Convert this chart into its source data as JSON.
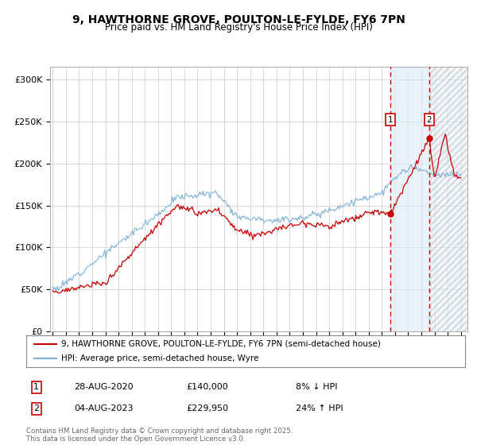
{
  "title_line1": "9, HAWTHORNE GROVE, POULTON-LE-FYLDE, FY6 7PN",
  "title_line2": "Price paid vs. HM Land Registry's House Price Index (HPI)",
  "ylabel_ticks": [
    "£0",
    "£50K",
    "£100K",
    "£150K",
    "£200K",
    "£250K",
    "£300K"
  ],
  "ytick_values": [
    0,
    50000,
    100000,
    150000,
    200000,
    250000,
    300000
  ],
  "ylim": [
    0,
    315000
  ],
  "xlim_start": 1994.8,
  "xlim_end": 2026.5,
  "xtick_years": [
    1995,
    1996,
    1997,
    1998,
    1999,
    2000,
    2001,
    2002,
    2003,
    2004,
    2005,
    2006,
    2007,
    2008,
    2009,
    2010,
    2011,
    2012,
    2013,
    2014,
    2015,
    2016,
    2017,
    2018,
    2019,
    2020,
    2021,
    2022,
    2023,
    2024,
    2025,
    2026
  ],
  "color_red": "#cc0000",
  "color_blue": "#7ab0d4",
  "color_grid": "#cccccc",
  "color_bg": "#ffffff",
  "marker1_x": 2020.65,
  "marker1_y": 140000,
  "marker2_x": 2023.58,
  "marker2_y": 229950,
  "annotation1": [
    "1",
    "28-AUG-2020",
    "£140,000",
    "8% ↓ HPI"
  ],
  "annotation2": [
    "2",
    "04-AUG-2023",
    "£229,950",
    "24% ↑ HPI"
  ],
  "legend_line1": "9, HAWTHORNE GROVE, POULTON-LE-FYLDE, FY6 7PN (semi-detached house)",
  "legend_line2": "HPI: Average price, semi-detached house, Wyre",
  "footer": "Contains HM Land Registry data © Crown copyright and database right 2025.\nThis data is licensed under the Open Government Licence v3.0."
}
